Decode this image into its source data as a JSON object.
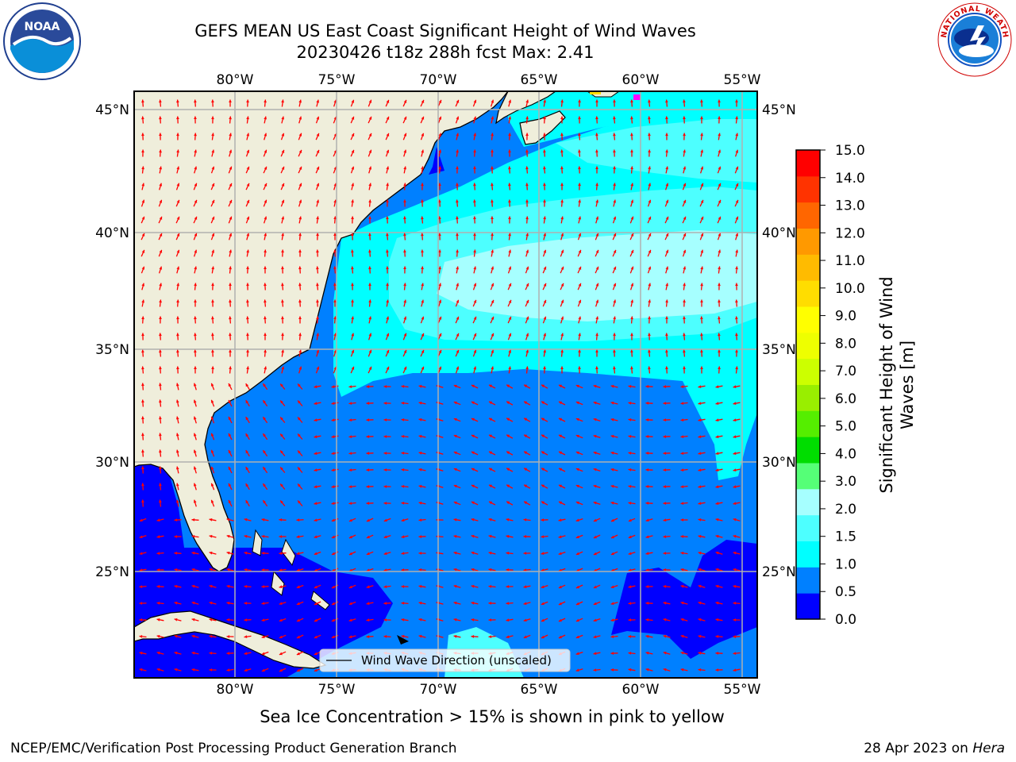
{
  "header": {
    "title_line1": "GEFS MEAN US East Coast Significant Height of Wind Waves",
    "title_line2": "20230426 t18z 288h fcst   Max: 2.41"
  },
  "logos": {
    "left": "NOAA",
    "right": "NATIONAL WEATHER SERVICE"
  },
  "map": {
    "lon_labels_top": [
      "80°W",
      "75°W",
      "70°W",
      "65°W",
      "60°W",
      "55°W"
    ],
    "lon_labels_bottom": [
      "80°W",
      "75°W",
      "70°W",
      "65°W",
      "60°W",
      "55°W"
    ],
    "lat_labels_left": [
      "45°N",
      "40°N",
      "35°N",
      "30°N",
      "25°N"
    ],
    "lat_labels_right": [
      "45°N",
      "40°N",
      "35°N",
      "30°N",
      "25°N"
    ],
    "legend_label": "Wind Wave Direction (unscaled)",
    "colors": {
      "land": "#efeedb",
      "ocean_dark": "#0000ff",
      "ocean_mid": "#0080ff",
      "ocean_cyan": "#00ffff",
      "ocean_light": "#66ffff",
      "ocean_pale": "#a6ffff",
      "arrow": "#ff0000",
      "grid": "#b0b0b0"
    }
  },
  "colorbar": {
    "label_line1": "Significant Height of Wind",
    "label_line2": "Waves [m]",
    "ticks": [
      "15.0",
      "14.0",
      "13.0",
      "12.0",
      "11.0",
      "10.0",
      "9.0",
      "8.0",
      "7.0",
      "6.0",
      "5.0",
      "4.0",
      "3.0",
      "2.0",
      "1.5",
      "1.0",
      "0.5",
      "0.0"
    ],
    "colors_bottom_to_top": [
      "#0000ff",
      "#0080ff",
      "#00ffff",
      "#4dffff",
      "#a6ffff",
      "#55ff77",
      "#00dd00",
      "#55ee00",
      "#99ee00",
      "#ccff00",
      "#eeff00",
      "#ffff00",
      "#ffdd00",
      "#ffbb00",
      "#ff9900",
      "#ff6600",
      "#ff3300",
      "#ff0000"
    ]
  },
  "footer": {
    "sea_ice_note": "Sea Ice Concentration > 15% is shown in pink to yellow",
    "left": "NCEP/EMC/Verification Post Processing Product Generation Branch",
    "right_date": "28 Apr 2023 on ",
    "right_host": "Hera"
  }
}
